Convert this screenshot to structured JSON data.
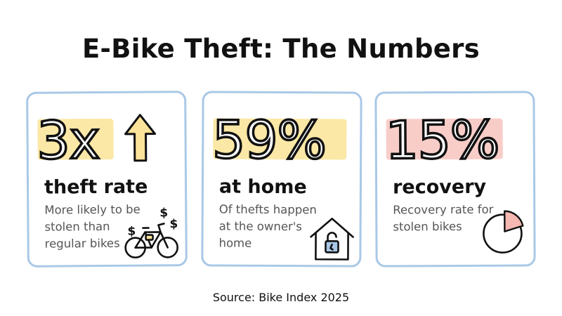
{
  "title": "E-Bike Theft: The Numbers",
  "cards": [
    {
      "value": "3x",
      "label": "theft rate",
      "description": "More likely to be stolen than regular bikes",
      "icons": [
        "up-arrow-icon",
        "bicycle-icon",
        "dollar-sign-icon"
      ]
    },
    {
      "value": "59%",
      "label": "at home",
      "description": "Of thefts happen at the owner's home",
      "icons": [
        "house-with-broken-lock-icon"
      ]
    },
    {
      "value": "15%",
      "label": "recovery",
      "description": "Recovery rate for stolen bikes",
      "icons": [
        "pie-chart-icon"
      ]
    }
  ],
  "source": "Source: Bike Index 2025",
  "colors": {
    "card_border": "#a9c8e6",
    "highlight_yellow": "#fbe8a6",
    "highlight_pink": "#f8cdc8",
    "arrow_fill": "#fbe39a",
    "pie_slice": "#f5b8b3"
  }
}
